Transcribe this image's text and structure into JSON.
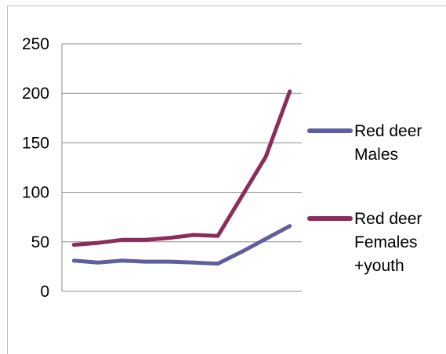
{
  "chart_data": {
    "type": "line",
    "title": "",
    "xlabel": "",
    "ylabel": "",
    "ylim": [
      0,
      250
    ],
    "yticks": [
      0,
      50,
      100,
      150,
      200,
      250
    ],
    "x": [
      1,
      2,
      3,
      4,
      5,
      6,
      7,
      8,
      9,
      10
    ],
    "grid": "horizontal major gridlines",
    "legend_position": "right",
    "series": [
      {
        "name": "Red deer Males",
        "legend_lines": [
          "Red deer",
          "Males"
        ],
        "color": "#5f5f9f",
        "values": [
          31,
          29,
          31,
          30,
          30,
          29,
          28,
          40,
          53,
          66
        ]
      },
      {
        "name": "Red deer Females +youth",
        "legend_lines": [
          "Red deer",
          "Females",
          "+youth"
        ],
        "color": "#8c2c5a",
        "values": [
          47,
          49,
          52,
          52,
          54,
          57,
          56,
          96,
          136,
          202
        ]
      }
    ]
  }
}
